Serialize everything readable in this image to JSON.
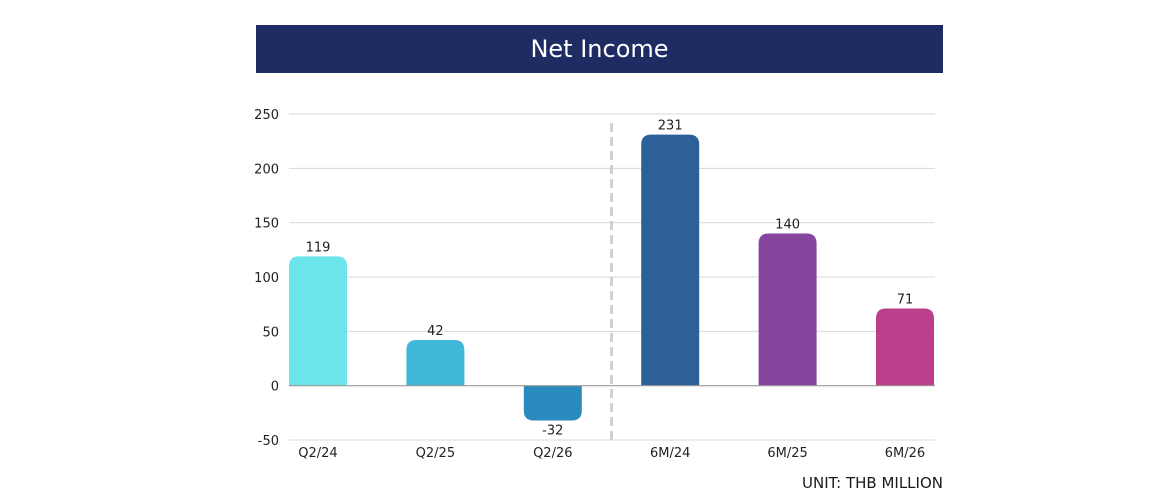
{
  "chart_data": {
    "type": "bar",
    "title": "Net Income",
    "categories": [
      "Q2/24",
      "Q2/25",
      "Q2/26",
      "6M/24",
      "6M/25",
      "6M/26"
    ],
    "values": [
      119,
      42,
      -32,
      231,
      140,
      71
    ],
    "value_labels": [
      "119",
      "42",
      "-32",
      "231",
      "140",
      "71"
    ],
    "colors": [
      "#6be5ea",
      "#42b8d8",
      "#2b8bbf",
      "#2d5f98",
      "#8646a0",
      "#bb3f8d"
    ],
    "ylim": [
      -50,
      250
    ],
    "yticks": [
      250,
      200,
      150,
      100,
      50,
      0,
      -50
    ],
    "ytick_labels": [
      "250",
      "200",
      "150",
      "100",
      "50",
      "0",
      "-50"
    ],
    "grid": true,
    "separator_after_index": 2,
    "xlabel": "",
    "ylabel": ""
  },
  "unit_note": "UNIT: THB MILLION"
}
